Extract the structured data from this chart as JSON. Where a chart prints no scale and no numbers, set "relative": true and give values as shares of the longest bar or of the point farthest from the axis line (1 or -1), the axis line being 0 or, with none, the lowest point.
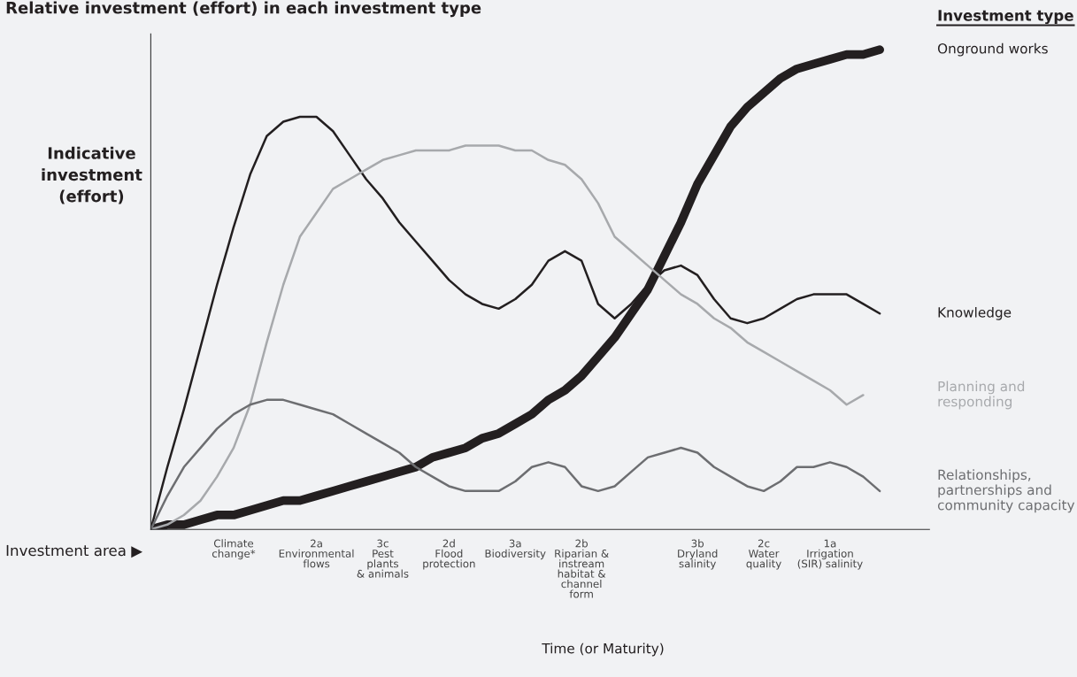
{
  "chart_data": {
    "type": "line",
    "title": "Relative investment (effort) in each investment type",
    "ylabel": "Indicative\ninvestment\n(effort)",
    "xlabel": "Time (or Maturity)",
    "legend_title": "Investment type",
    "legend": "right",
    "relative": true,
    "grid": false,
    "marker": "none",
    "line_style": "solid",
    "annotations": [
      "Investment area ▶"
    ],
    "categories": [
      null,
      null,
      null,
      null,
      null,
      "Climate\nchange*",
      null,
      null,
      null,
      null,
      "2a\nEnvironmental\nflows",
      null,
      null,
      null,
      "3c\nPest\nplants\n& animals",
      null,
      null,
      null,
      "2d\nFlood\nprotection",
      null,
      null,
      null,
      "3a\nBiodiversity",
      null,
      null,
      null,
      "2b\nRiparian &\ninstream\nhabitat &\nchannel\nform",
      null,
      null,
      null,
      null,
      null,
      null,
      "3b\nDryland\nsalinity",
      null,
      null,
      null,
      "2c\nWater\nquality",
      null,
      null,
      null,
      "1a\nIrrigation\n(SIR) salinity",
      null,
      null,
      null,
      null,
      null,
      null
    ],
    "series": [
      {
        "name": "Onground works",
        "color": "#231f20",
        "values": [
          0,
          0.01,
          0.01,
          0.02,
          0.03,
          0.03,
          0.04,
          0.05,
          0.06,
          0.06,
          0.07,
          0.08,
          0.09,
          0.1,
          0.11,
          0.12,
          0.13,
          0.15,
          0.16,
          0.17,
          0.19,
          0.2,
          0.22,
          0.24,
          0.27,
          0.29,
          0.32,
          0.36,
          0.4,
          0.45,
          0.5,
          0.57,
          0.64,
          0.72,
          0.78,
          0.84,
          0.88,
          0.91,
          0.94,
          0.96,
          0.97,
          0.98,
          0.99,
          0.99,
          1,
          null,
          null,
          null
        ]
      },
      {
        "name": "Knowledge",
        "color": "#231f20",
        "values": [
          0,
          0.13,
          0.25,
          0.38,
          0.51,
          0.63,
          0.74,
          0.82,
          0.85,
          0.86,
          0.86,
          0.83,
          0.78,
          0.73,
          0.69,
          0.64,
          0.6,
          0.56,
          0.52,
          0.49,
          0.47,
          0.46,
          0.48,
          0.51,
          0.56,
          0.58,
          0.56,
          0.47,
          0.44,
          0.47,
          0.51,
          0.54,
          0.55,
          0.53,
          0.48,
          0.44,
          0.43,
          0.44,
          0.46,
          0.48,
          0.49,
          0.49,
          0.49,
          0.47,
          0.45,
          null,
          null,
          null
        ]
      },
      {
        "name": "Planning and\nresponding",
        "color": "#a7a9ac",
        "values": [
          0,
          0.01,
          0.03,
          0.06,
          0.11,
          0.17,
          0.26,
          0.39,
          0.51,
          0.61,
          0.66,
          0.71,
          0.73,
          0.75,
          0.77,
          0.78,
          0.79,
          0.79,
          0.79,
          0.8,
          0.8,
          0.8,
          0.79,
          0.79,
          0.77,
          0.76,
          0.73,
          0.68,
          0.61,
          0.58,
          0.55,
          0.52,
          0.49,
          0.47,
          0.44,
          0.42,
          0.39,
          0.37,
          0.35,
          0.33,
          0.31,
          0.29,
          0.26,
          0.28,
          null,
          null,
          null,
          null
        ]
      },
      {
        "name": "Relationships,\npartnerships and\ncommunity capacity",
        "color": "#6d6e71",
        "values": [
          0,
          0.07,
          0.13,
          0.17,
          0.21,
          0.24,
          0.26,
          0.27,
          0.27,
          0.26,
          0.25,
          0.24,
          0.22,
          0.2,
          0.18,
          0.16,
          0.13,
          0.11,
          0.09,
          0.08,
          0.08,
          0.08,
          0.1,
          0.13,
          0.14,
          0.13,
          0.09,
          0.08,
          0.09,
          0.12,
          0.15,
          0.16,
          0.17,
          0.16,
          0.13,
          0.11,
          0.09,
          0.08,
          0.1,
          0.13,
          0.13,
          0.14,
          0.13,
          0.11,
          0.08,
          null,
          null,
          null
        ]
      }
    ]
  }
}
